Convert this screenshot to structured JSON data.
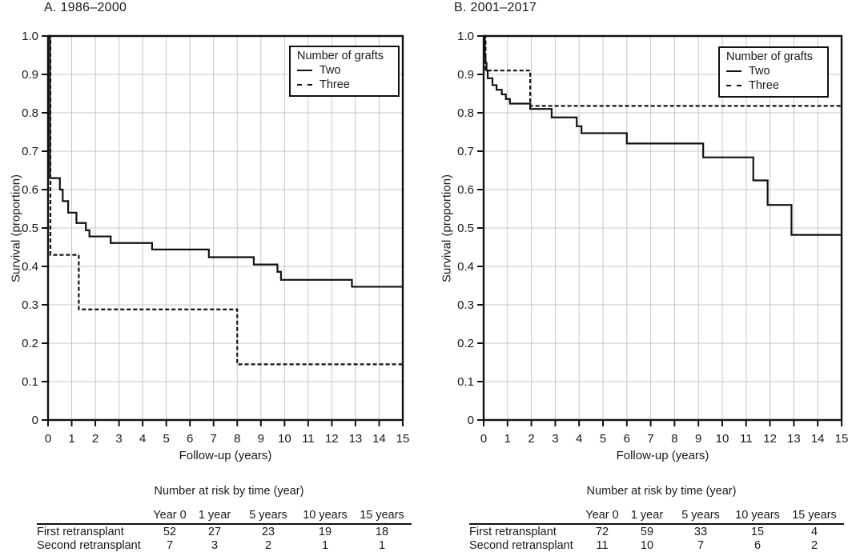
{
  "figure": {
    "panels": [
      {
        "key": "A",
        "title": "A. 1986–2000",
        "x_axis_label": "Follow-up (years)",
        "y_axis_label": "Survival (proportion)",
        "legend": {
          "title": "Number of grafts",
          "entries": [
            {
              "label": "Two",
              "line_style": "solid"
            },
            {
              "label": "Three",
              "line_style": "dashed"
            }
          ]
        },
        "risk_table": {
          "title": "Number at risk by time (year)",
          "columns": [
            "Year 0",
            "1 year",
            "5 years",
            "10 years",
            "15 years"
          ],
          "rows": [
            {
              "label": "First retransplant",
              "values": [
                "52",
                "27",
                "23",
                "19",
                "18"
              ]
            },
            {
              "label": "Second retransplant",
              "values": [
                "7",
                "3",
                "2",
                "1",
                "1"
              ]
            }
          ]
        }
      },
      {
        "key": "B",
        "title": "B. 2001–2017",
        "x_axis_label": "Follow-up (years)",
        "y_axis_label": "Survival (proportion)",
        "legend": {
          "title": "Number of grafts",
          "entries": [
            {
              "label": "Two",
              "line_style": "solid"
            },
            {
              "label": "Three",
              "line_style": "dashed"
            }
          ]
        },
        "risk_table": {
          "title": "Number at risk by time (year)",
          "columns": [
            "Year 0",
            "1 year",
            "5 years",
            "10 years",
            "15 years"
          ],
          "rows": [
            {
              "label": "First retransplant",
              "values": [
                "72",
                "59",
                "33",
                "15",
                "4"
              ]
            },
            {
              "label": "Second retransplant",
              "values": [
                "11",
                "10",
                "7",
                "6",
                "2"
              ]
            }
          ]
        }
      }
    ]
  },
  "chart_data": [
    {
      "type": "line",
      "subtype": "kaplan-meier-step",
      "title": "A. 1986–2000",
      "xlabel": "Follow-up (years)",
      "ylabel": "Survival (proportion)",
      "xlim": [
        0,
        15
      ],
      "ylim": [
        0,
        1
      ],
      "grid": true,
      "legend_position": "top-right",
      "xtick_values": [
        0,
        1,
        2,
        3,
        4,
        5,
        6,
        7,
        8,
        9,
        10,
        11,
        12,
        13,
        14,
        15
      ],
      "xtick_labels": [
        "0",
        "1",
        "2",
        "3",
        "4",
        "5",
        "6",
        "7",
        "8",
        "9",
        "10",
        "11",
        "12",
        "13",
        "14",
        "15"
      ],
      "ytick_values": [
        0,
        0.1,
        0.2,
        0.3,
        0.4,
        0.5,
        0.6,
        0.7,
        0.8,
        0.9,
        1.0
      ],
      "ytick_labels": [
        "0",
        "0.1",
        "0.2",
        "0.3",
        "0.4",
        "0.5",
        "0.6",
        "0.7",
        "0.8",
        "0.9",
        "1.0"
      ],
      "x_end": 15,
      "series": [
        {
          "name": "Two",
          "style": "solid",
          "steps": [
            [
              0,
              1.0
            ],
            [
              0.08,
              0.63
            ],
            [
              0.5,
              0.6
            ],
            [
              0.62,
              0.57
            ],
            [
              0.85,
              0.54
            ],
            [
              1.2,
              0.513
            ],
            [
              1.6,
              0.494
            ],
            [
              1.75,
              0.478
            ],
            [
              2.65,
              0.461
            ],
            [
              4.4,
              0.444
            ],
            [
              6.8,
              0.424
            ],
            [
              8.7,
              0.405
            ],
            [
              9.7,
              0.386
            ],
            [
              9.85,
              0.365
            ],
            [
              12.85,
              0.347
            ]
          ]
        },
        {
          "name": "Three",
          "style": "dashed",
          "steps": [
            [
              0,
              1.0
            ],
            [
              0.1,
              0.43
            ],
            [
              1.3,
              0.288
            ],
            [
              8.0,
              0.145
            ]
          ]
        }
      ]
    },
    {
      "type": "line",
      "subtype": "kaplan-meier-step",
      "title": "B. 2001–2017",
      "xlabel": "Follow-up (years)",
      "ylabel": "Survival (proportion)",
      "xlim": [
        0,
        15
      ],
      "ylim": [
        0,
        1
      ],
      "grid": true,
      "legend_position": "top-right",
      "xtick_values": [
        0,
        1,
        2,
        3,
        4,
        5,
        6,
        7,
        8,
        9,
        10,
        11,
        12,
        13,
        14,
        15
      ],
      "xtick_labels": [
        "0",
        "1",
        "2",
        "3",
        "4",
        "5",
        "6",
        "7",
        "8",
        "9",
        "10",
        "11",
        "12",
        "13",
        "14",
        "15"
      ],
      "ytick_values": [
        0,
        0.1,
        0.2,
        0.3,
        0.4,
        0.5,
        0.6,
        0.7,
        0.8,
        0.9,
        1.0
      ],
      "ytick_labels": [
        "0",
        "0.1",
        "0.2",
        "0.3",
        "0.4",
        "0.5",
        "0.6",
        "0.7",
        "0.8",
        "0.9",
        "1.0"
      ],
      "x_end": 15,
      "series": [
        {
          "name": "Two",
          "style": "solid",
          "steps": [
            [
              0,
              1.0
            ],
            [
              0.05,
              0.953
            ],
            [
              0.08,
              0.93
            ],
            [
              0.12,
              0.91
            ],
            [
              0.17,
              0.89
            ],
            [
              0.37,
              0.872
            ],
            [
              0.54,
              0.86
            ],
            [
              0.76,
              0.848
            ],
            [
              0.93,
              0.836
            ],
            [
              1.1,
              0.824
            ],
            [
              1.95,
              0.81
            ],
            [
              2.85,
              0.788
            ],
            [
              3.9,
              0.765
            ],
            [
              4.1,
              0.747
            ],
            [
              6.0,
              0.72
            ],
            [
              9.2,
              0.684
            ],
            [
              11.3,
              0.624
            ],
            [
              11.9,
              0.56
            ],
            [
              12.9,
              0.482
            ]
          ]
        },
        {
          "name": "Three",
          "style": "dashed",
          "steps": [
            [
              0,
              1.0
            ],
            [
              0.08,
              0.91
            ],
            [
              1.95,
              0.818
            ]
          ]
        }
      ]
    }
  ],
  "style": {
    "curve_color": "#111111",
    "grid_color": "#c7c7c7",
    "text_color": "#1a1a1a",
    "background": "#ffffff"
  }
}
